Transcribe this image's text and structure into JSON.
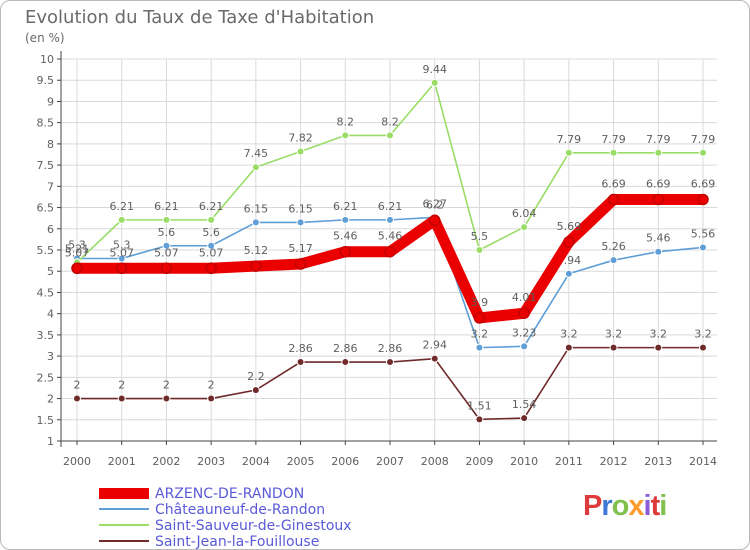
{
  "header": {
    "title": "Evolution du Taux de Taxe d'Habitation",
    "subtitle": "(en %)"
  },
  "logo": {
    "letters": [
      "P",
      "r",
      "o",
      "x",
      "i",
      "t",
      "i"
    ]
  },
  "colors": {
    "arzenc": "#ea0000",
    "chateauneuf": "#5f9ed6",
    "saint_sauveur": "#99dd66",
    "saint_jean": "#6f2a2a",
    "grid": "#d9d9d9",
    "axis": "#444444",
    "text": "#5f5f5f",
    "legend_text": "#5a5ad8"
  },
  "chart_data": {
    "type": "line",
    "x": [
      2000,
      2001,
      2002,
      2003,
      2004,
      2005,
      2006,
      2007,
      2008,
      2009,
      2010,
      2011,
      2012,
      2013,
      2014
    ],
    "xlim": [
      2000,
      2014
    ],
    "ylim": [
      1,
      10
    ],
    "y_ticks": [
      1,
      1.5,
      2,
      2.5,
      3,
      3.5,
      4,
      4.5,
      5,
      5.5,
      6,
      6.5,
      7,
      7.5,
      8,
      8.5,
      9,
      9.5,
      10
    ],
    "grid": true,
    "series": [
      {
        "name": "ARZENC-DE-RANDON",
        "values": [
          5.07,
          5.07,
          5.07,
          5.07,
          5.12,
          5.17,
          5.46,
          5.46,
          6.2,
          3.9,
          4.01,
          5.69,
          6.69,
          6.69,
          6.69
        ],
        "labels": [
          "5.07",
          "5.07",
          "5.07",
          "5.07",
          "5.12",
          "5.17",
          "5.46",
          "5.46",
          "6.2",
          "3.9",
          "4.01",
          "5.69",
          "6.69",
          "6.69",
          "6.69"
        ],
        "color": "#ea0000"
      },
      {
        "name": "Châteauneuf-de-Randon",
        "values": [
          5.3,
          5.3,
          5.6,
          5.6,
          6.15,
          6.15,
          6.21,
          6.21,
          6.27,
          3.2,
          3.23,
          4.94,
          5.26,
          5.46,
          5.56
        ],
        "labels": [
          "5.3",
          "5.3",
          "5.6",
          "5.6",
          "6.15",
          "6.15",
          "6.21",
          "6.21",
          "6.27",
          "3.2",
          "3.23",
          "4.94",
          "5.26",
          "5.46",
          "5.56"
        ],
        "color": "#5f9ed6"
      },
      {
        "name": "Saint-Sauveur-de-Ginestoux",
        "values": [
          5.21,
          6.21,
          6.21,
          6.21,
          7.45,
          7.82,
          8.2,
          8.2,
          9.44,
          5.5,
          6.04,
          7.79,
          7.79,
          7.79,
          7.79
        ],
        "labels": [
          "5.21",
          "6.21",
          "6.21",
          "6.21",
          "7.45",
          "7.82",
          "8.2",
          "8.2",
          "9.44",
          "5.5",
          "6.04",
          "7.79",
          "7.79",
          "7.79",
          "7.79"
        ],
        "color": "#99dd66"
      },
      {
        "name": "Saint-Jean-la-Fouillouse",
        "values": [
          2,
          2,
          2,
          2,
          2.2,
          2.86,
          2.86,
          2.86,
          2.94,
          1.51,
          1.54,
          3.2,
          3.2,
          3.2,
          3.2
        ],
        "labels": [
          "2",
          "2",
          "2",
          "2",
          "2.2",
          "2.86",
          "2.86",
          "2.86",
          "2.94",
          "1.51",
          "1.54",
          "3.2",
          "3.2",
          "3.2",
          "3.2"
        ],
        "color": "#6f2a2a"
      }
    ]
  }
}
